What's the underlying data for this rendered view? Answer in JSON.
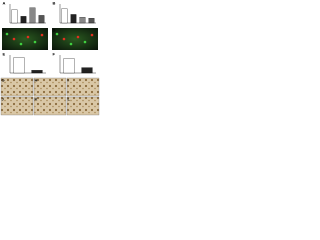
{
  "panels": [
    {
      "label": "A",
      "type": "bar",
      "values": [
        70,
        35,
        80,
        40
      ],
      "ylim": [
        0,
        100
      ]
    },
    {
      "label": "B",
      "type": "bar",
      "values": [
        75,
        45,
        30,
        25
      ],
      "ylim": [
        0,
        100
      ]
    },
    {
      "label": "C",
      "type": "image"
    },
    {
      "label": "D",
      "type": "image"
    },
    {
      "label": "E",
      "type": "bar",
      "values": [
        85,
        15
      ],
      "ylim": [
        0,
        100
      ]
    },
    {
      "label": "F",
      "type": "bar",
      "values": [
        80,
        30
      ],
      "ylim": [
        0,
        100
      ]
    },
    {
      "label": "G",
      "type": "image"
    },
    {
      "label": "H",
      "type": "image"
    },
    {
      "label": "I",
      "type": "image"
    },
    {
      "label": "J",
      "type": "image"
    },
    {
      "label": "K",
      "type": "image"
    },
    {
      "label": "L",
      "type": "image"
    }
  ]
}
